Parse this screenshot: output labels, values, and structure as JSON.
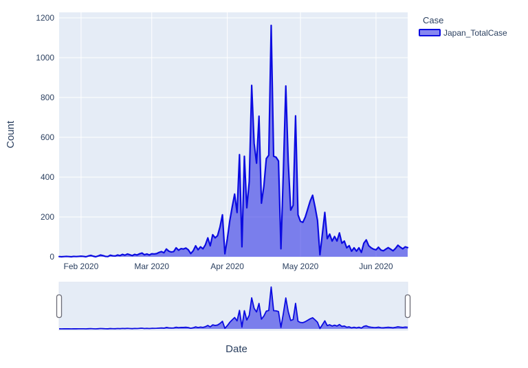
{
  "figure": {
    "background_color": "#ffffff",
    "plot_bgcolor": "#e5ecf6",
    "grid_color": "#ffffff",
    "text_color": "#2a3f5f",
    "line_color": "#0b0be1",
    "fill_color": "rgba(15,15,225,0.5)",
    "handle_border_color": "#6b6b76"
  },
  "legend": {
    "title": "Case",
    "items": [
      {
        "label": "Japan_TotalCase"
      }
    ]
  },
  "axes": {
    "x": {
      "title": "Date",
      "tick_labels": [
        "Feb 2020",
        "Mar 2020",
        "Apr 2020",
        "May 2020",
        "Jun 2020"
      ]
    },
    "y": {
      "title": "Count",
      "tick_labels": [
        "0",
        "200",
        "400",
        "600",
        "800",
        "1000",
        "1200"
      ],
      "range": [
        0,
        1200
      ]
    }
  },
  "chart_data": {
    "type": "area",
    "title": "",
    "xlabel": "Date",
    "ylabel": "Count",
    "ylim": [
      0,
      1200
    ],
    "yticks": [
      0,
      200,
      400,
      600,
      800,
      1000,
      1200
    ],
    "x_tick_labels": [
      "Feb 2020",
      "Mar 2020",
      "Apr 2020",
      "May 2020",
      "Jun 2020"
    ],
    "legend_position": "top-right",
    "grid": true,
    "rangeslider": true,
    "x": [
      "2020-01-23",
      "2020-01-24",
      "2020-01-25",
      "2020-01-26",
      "2020-01-27",
      "2020-01-28",
      "2020-01-29",
      "2020-01-30",
      "2020-01-31",
      "2020-02-01",
      "2020-02-02",
      "2020-02-03",
      "2020-02-04",
      "2020-02-05",
      "2020-02-06",
      "2020-02-07",
      "2020-02-08",
      "2020-02-09",
      "2020-02-10",
      "2020-02-11",
      "2020-02-12",
      "2020-02-13",
      "2020-02-14",
      "2020-02-15",
      "2020-02-16",
      "2020-02-17",
      "2020-02-18",
      "2020-02-19",
      "2020-02-20",
      "2020-02-21",
      "2020-02-22",
      "2020-02-23",
      "2020-02-24",
      "2020-02-25",
      "2020-02-26",
      "2020-02-27",
      "2020-02-28",
      "2020-02-29",
      "2020-03-01",
      "2020-03-02",
      "2020-03-03",
      "2020-03-04",
      "2020-03-05",
      "2020-03-06",
      "2020-03-07",
      "2020-03-08",
      "2020-03-09",
      "2020-03-10",
      "2020-03-11",
      "2020-03-12",
      "2020-03-13",
      "2020-03-14",
      "2020-03-15",
      "2020-03-16",
      "2020-03-17",
      "2020-03-18",
      "2020-03-19",
      "2020-03-20",
      "2020-03-21",
      "2020-03-22",
      "2020-03-23",
      "2020-03-24",
      "2020-03-25",
      "2020-03-26",
      "2020-03-27",
      "2020-03-28",
      "2020-03-29",
      "2020-03-30",
      "2020-03-31",
      "2020-04-01",
      "2020-04-02",
      "2020-04-03",
      "2020-04-04",
      "2020-04-05",
      "2020-04-06",
      "2020-04-07",
      "2020-04-08",
      "2020-04-09",
      "2020-04-10",
      "2020-04-11",
      "2020-04-12",
      "2020-04-13",
      "2020-04-14",
      "2020-04-15",
      "2020-04-16",
      "2020-04-17",
      "2020-04-18",
      "2020-04-19",
      "2020-04-20",
      "2020-04-21",
      "2020-04-22",
      "2020-04-23",
      "2020-04-24",
      "2020-04-25",
      "2020-04-26",
      "2020-04-27",
      "2020-04-28",
      "2020-04-29",
      "2020-04-30",
      "2020-05-01",
      "2020-05-02",
      "2020-05-03",
      "2020-05-04",
      "2020-05-05",
      "2020-05-06",
      "2020-05-07",
      "2020-05-08",
      "2020-05-09",
      "2020-05-10",
      "2020-05-11",
      "2020-05-12",
      "2020-05-13",
      "2020-05-14",
      "2020-05-15",
      "2020-05-16",
      "2020-05-17",
      "2020-05-18",
      "2020-05-19",
      "2020-05-20",
      "2020-05-21",
      "2020-05-22",
      "2020-05-23",
      "2020-05-24",
      "2020-05-25",
      "2020-05-26",
      "2020-05-27",
      "2020-05-28",
      "2020-05-29",
      "2020-05-30",
      "2020-05-31",
      "2020-06-01",
      "2020-06-02",
      "2020-06-03",
      "2020-06-04",
      "2020-06-05",
      "2020-06-06",
      "2020-06-07",
      "2020-06-08",
      "2020-06-09",
      "2020-06-10",
      "2020-06-11",
      "2020-06-12",
      "2020-06-13",
      "2020-06-14"
    ],
    "series": [
      {
        "name": "Japan_TotalCase",
        "values": [
          1,
          0,
          1,
          2,
          1,
          0,
          2,
          1,
          2,
          3,
          2,
          0,
          4,
          7,
          3,
          0,
          4,
          9,
          6,
          2,
          1,
          8,
          5,
          4,
          9,
          6,
          12,
          8,
          14,
          10,
          6,
          12,
          9,
          15,
          19,
          10,
          14,
          9,
          15,
          14,
          16,
          22,
          26,
          20,
          39,
          28,
          24,
          26,
          45,
          33,
          41,
          39,
          44,
          35,
          16,
          30,
          55,
          35,
          50,
          40,
          60,
          95,
          55,
          111,
          95,
          106,
          150,
          211,
          15,
          90,
          180,
          250,
          315,
          222,
          513,
          50,
          505,
          246,
          378,
          861,
          570,
          470,
          706,
          269,
          355,
          493,
          510,
          1162,
          505,
          500,
          481,
          40,
          430,
          858,
          476,
          234,
          258,
          708,
          211,
          178,
          173,
          200,
          240,
          280,
          309,
          250,
          183,
          10,
          115,
          223,
          91,
          114,
          79,
          102,
          79,
          120,
          68,
          79,
          45,
          56,
          28,
          45,
          28,
          45,
          22,
          68,
          85,
          56,
          45,
          38,
          35,
          48,
          34,
          30,
          38,
          46,
          38,
          30,
          42,
          58,
          48,
          40,
          50,
          46
        ]
      }
    ]
  }
}
